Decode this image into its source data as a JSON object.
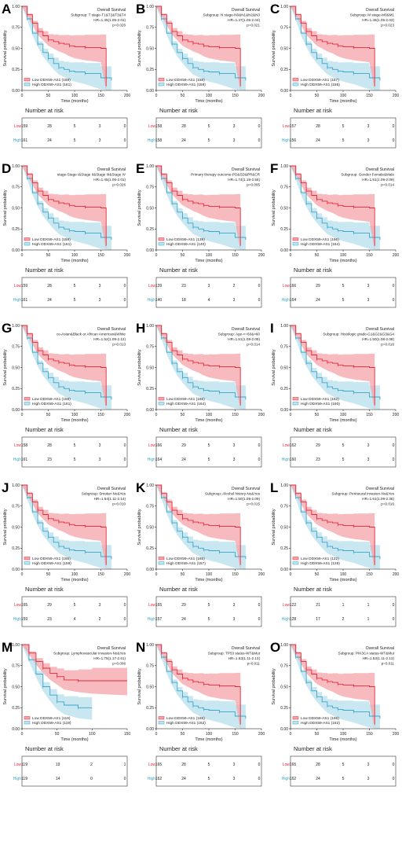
{
  "common": {
    "xlabel": "Time (months)",
    "ylabel": "Survival probability",
    "risk_title": "Number at risk",
    "low_label": "Low",
    "high_label": "High",
    "x_ticks": [
      0,
      50,
      100,
      150,
      200
    ],
    "y_ticks": [
      "1.00",
      "0.75",
      "0.50",
      "0.25",
      "0.00"
    ],
    "low_color": "#e8283a",
    "high_color": "#3aa6c9",
    "low_band": "#f4a3a8",
    "high_band": "#bfe3ef"
  },
  "panels": [
    {
      "letter": "A",
      "title": "Overall Survival",
      "subgroup": "Subgroup: T stage-T1&T2&T3&T4",
      "hr": "HR=1.45(1.05-2.01)",
      "p": "p=0.026",
      "legend": [
        "Low DDX59-AS1 (159)",
        "High DDX59-AS1 (161)"
      ],
      "risk_low": [
        "159",
        "28",
        "5",
        "3",
        "0"
      ],
      "risk_high": [
        "161",
        "24",
        "5",
        "3",
        "0"
      ]
    },
    {
      "letter": "B",
      "title": "Overall Survival",
      "subgroup": "Subgroup: N stage-N0&N1&N2&N3",
      "hr": "HR=1.47(1.06-2.04)",
      "p": "p=0.021",
      "legend": [
        "Low DDX59-AS1 (158)",
        "High DDX59-AS1 (158)"
      ],
      "risk_low": [
        "158",
        "28",
        "5",
        "3",
        "0"
      ],
      "risk_high": [
        "158",
        "24",
        "5",
        "3",
        "0"
      ]
    },
    {
      "letter": "C",
      "title": "Overall Survival",
      "subgroup": "Subgroup: M stage-M0&M1",
      "hr": "HR=1.46(1.05-2.03)",
      "p": "p=0.023",
      "legend": [
        "Low DDX59-AS1 (157)",
        "High DDX59-AS1 (156)"
      ],
      "risk_low": [
        "157",
        "28",
        "5",
        "3",
        "0"
      ],
      "risk_high": [
        "156",
        "24",
        "5",
        "3",
        "0"
      ]
    },
    {
      "letter": "D",
      "title": "Overall Survival",
      "subgroup": "stage-Stage I&Stage II&Stage III&Stage IV",
      "hr": "HR=1.45(1.05-2.01)",
      "p": "p=0.026",
      "legend": [
        "Low DDX59-AS1 (159)",
        "High DDX59-AS1 (161)"
      ],
      "risk_low": [
        "159",
        "28",
        "5",
        "3",
        "0"
      ],
      "risk_high": [
        "161",
        "24",
        "5",
        "3",
        "0"
      ]
    },
    {
      "letter": "E",
      "title": "Overall Survival",
      "subgroup": "Primary therapy outcome-PD&SD&PR&CR",
      "hr": "HR=1.74(1.18-2.55)",
      "p": "p=0.005",
      "legend": [
        "Low DDX59-AS1 (139)",
        "High DDX59-AS1 (140)"
      ],
      "risk_low": [
        "139",
        "23",
        "3",
        "2",
        "0"
      ],
      "risk_high": [
        "140",
        "18",
        "4",
        "3",
        "0"
      ]
    },
    {
      "letter": "F",
      "title": "Overall Survival",
      "subgroup": "Subgroup: Gender-Female&Male",
      "hr": "HR=1.51(1.09-2.09)",
      "p": "p=0.014",
      "legend": [
        "Low DDX59-AS1 (166)",
        "High DDX59-AS1 (164)"
      ],
      "risk_low": [
        "166",
        "29",
        "5",
        "3",
        "0"
      ],
      "risk_high": [
        "164",
        "24",
        "5",
        "3",
        "0"
      ]
    },
    {
      "letter": "G",
      "title": "Overall Survival",
      "subgroup": "ce-Asian&Black or African American&White",
      "hr": "HR=1.52(1.09-2.12)",
      "p": "p=0.013",
      "legend": [
        "Low DDX59-AS1 (158)",
        "High DDX59-AS1 (161)"
      ],
      "risk_low": [
        "158",
        "28",
        "5",
        "3",
        "0"
      ],
      "risk_high": [
        "161",
        "23",
        "5",
        "3",
        "0"
      ]
    },
    {
      "letter": "H",
      "title": "Overall Survival",
      "subgroup": "Subgroup: Age-<=60&>60",
      "hr": "HR=1.51(1.09-2.09)",
      "p": "p=0.014",
      "legend": [
        "Low DDX59-AS1 (166)",
        "High DDX59-AS1 (164)"
      ],
      "risk_low": [
        "166",
        "29",
        "5",
        "3",
        "0"
      ],
      "risk_high": [
        "164",
        "24",
        "5",
        "3",
        "0"
      ]
    },
    {
      "letter": "I",
      "title": "Overall Survival",
      "subgroup": "Subgroup: Histologic grade-G1&G2&G3&G4",
      "hr": "HR=1.50(1.08-2.08)",
      "p": "p=0.016",
      "legend": [
        "Low DDX59-AS1 (162)",
        "High DDX59-AS1 (160)"
      ],
      "risk_low": [
        "162",
        "29",
        "5",
        "3",
        "0"
      ],
      "risk_high": [
        "160",
        "23",
        "5",
        "3",
        "0"
      ]
    },
    {
      "letter": "J",
      "title": "Overall Survival",
      "subgroup": "Subgroup: Smoker-No&Yes",
      "hr": "HR=1.54(1.11-2.14)",
      "p": "p=0.010",
      "legend": [
        "Low DDX59-AS1 (165)",
        "High DDX59-AS1 (159)"
      ],
      "risk_low": [
        "165",
        "29",
        "5",
        "3",
        "0"
      ],
      "risk_high": [
        "159",
        "23",
        "4",
        "2",
        "0"
      ]
    },
    {
      "letter": "K",
      "title": "Overall Survival",
      "subgroup": "Subgroup: Alcohol history-No&Yes",
      "hr": "HR=1.50(1.08-2.09)",
      "p": "p=0.015",
      "legend": [
        "Low DDX59-AS1 (165)",
        "High DDX59-AS1 (157)"
      ],
      "risk_low": [
        "165",
        "29",
        "5",
        "3",
        "0"
      ],
      "risk_high": [
        "157",
        "24",
        "5",
        "3",
        "0"
      ]
    },
    {
      "letter": "L",
      "title": "Overall Survival",
      "subgroup": "Subgroup: Perineural invasion-No&Yes",
      "hr": "HR=1.61(1.09-2.36)",
      "p": "p=0.016",
      "legend": [
        "Low DDX59-AS1 (122)",
        "High DDX59-AS1 (128)"
      ],
      "risk_low": [
        "122",
        "21",
        "1",
        "1",
        "0"
      ],
      "risk_high": [
        "128",
        "17",
        "2",
        "1",
        "0"
      ]
    },
    {
      "letter": "M",
      "title": "Overall Survival",
      "subgroup": "Subgroup: Lymphovascular invasion-No&Yes",
      "hr": "HR=1.75(1.17-2.61)",
      "p": "p=0.006",
      "legend": [
        "Low DDX59-AS1 (119)",
        "High DDX59-AS1 (119)"
      ],
      "risk_low": [
        "119",
        "19",
        "2",
        "1"
      ],
      "risk_high": [
        "119",
        "14",
        "0",
        "0"
      ],
      "x_ticks": [
        0,
        50,
        100,
        150
      ]
    },
    {
      "letter": "N",
      "title": "Overall Survival",
      "subgroup": "Subgroup: TP53 status-WT&Mut",
      "hr": "HR=1.53(1.11-2.13)",
      "p": "p=0.011",
      "legend": [
        "Low DDX59-AS1 (165)",
        "High DDX59-AS1 (162)"
      ],
      "risk_low": [
        "165",
        "28",
        "5",
        "3",
        "0"
      ],
      "risk_high": [
        "162",
        "24",
        "5",
        "3",
        "0"
      ]
    },
    {
      "letter": "O",
      "title": "Overall Survival",
      "subgroup": "Subgroup: PIK3CA status-WT&Mut",
      "hr": "HR=1.53(1.11-2.13)",
      "p": "p=0.011",
      "legend": [
        "Low DDX59-AS1 (165)",
        "High DDX59-AS1 (162)"
      ],
      "risk_low": [
        "165",
        "28",
        "5",
        "3",
        "0"
      ],
      "risk_high": [
        "162",
        "24",
        "5",
        "3",
        "0"
      ]
    }
  ],
  "chart_data": {
    "type": "line",
    "xlabel": "Time (months)",
    "ylabel": "Survival probability",
    "xlim": [
      0,
      200
    ],
    "ylim": [
      0,
      1
    ],
    "grid": false,
    "legend_position": "bottom-left",
    "series": [
      {
        "name": "Low DDX59-AS1",
        "x": [
          0,
          10,
          20,
          30,
          40,
          50,
          60,
          70,
          80,
          90,
          100,
          120,
          150,
          160
        ],
        "y": [
          1.0,
          0.9,
          0.8,
          0.7,
          0.65,
          0.6,
          0.58,
          0.56,
          0.55,
          0.53,
          0.52,
          0.51,
          0.5,
          0.05
        ]
      },
      {
        "name": "High DDX59-AS1",
        "x": [
          0,
          10,
          20,
          30,
          40,
          50,
          60,
          70,
          80,
          90,
          100,
          120,
          150,
          170
        ],
        "y": [
          1.0,
          0.85,
          0.68,
          0.55,
          0.45,
          0.38,
          0.32,
          0.27,
          0.25,
          0.23,
          0.22,
          0.2,
          0.15,
          0.12
        ]
      }
    ],
    "panel_M_series": [
      {
        "name": "Low DDX59-AS1",
        "x": [
          0,
          10,
          20,
          30,
          40,
          50,
          60,
          80,
          100,
          150
        ],
        "y": [
          1.0,
          0.9,
          0.8,
          0.72,
          0.66,
          0.62,
          0.58,
          0.57,
          0.57,
          0.57
        ]
      },
      {
        "name": "High DDX59-AS1",
        "x": [
          0,
          10,
          20,
          30,
          40,
          50,
          60,
          80,
          100
        ],
        "y": [
          1.0,
          0.82,
          0.65,
          0.5,
          0.4,
          0.32,
          0.28,
          0.25,
          0.25
        ]
      }
    ]
  }
}
